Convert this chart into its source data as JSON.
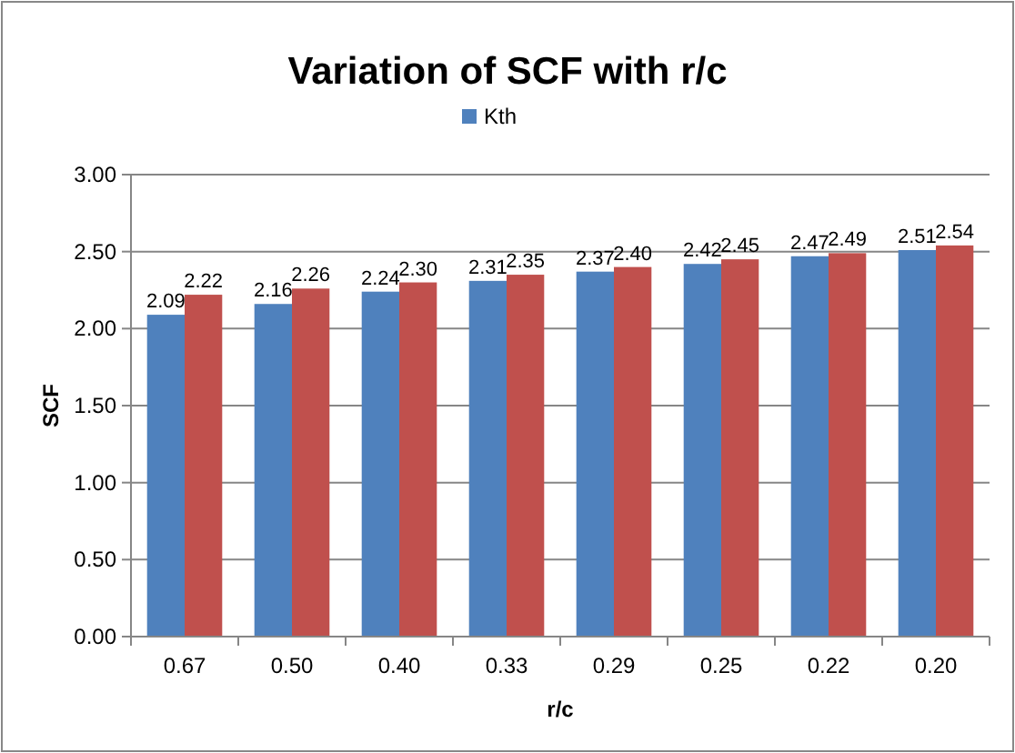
{
  "chart_data": {
    "type": "bar",
    "title": "Variation of SCF with r/c",
    "xlabel": "r/c",
    "ylabel": "SCF",
    "categories": [
      "0.67",
      "0.50",
      "0.40",
      "0.33",
      "0.29",
      "0.25",
      "0.22",
      "0.20"
    ],
    "series": [
      {
        "name": "Kth",
        "color": "#4f81bd",
        "values": [
          2.09,
          2.16,
          2.24,
          2.31,
          2.37,
          2.42,
          2.47,
          2.51
        ],
        "value_labels": [
          "2.09",
          "2.16",
          "2.24",
          "2.31",
          "2.37",
          "2.42",
          "2.47",
          "2.51"
        ]
      },
      {
        "color": "#c0504d",
        "values": [
          2.22,
          2.26,
          2.3,
          2.35,
          2.4,
          2.45,
          2.49,
          2.54
        ],
        "value_labels": [
          "2.22",
          "2.26",
          "2.30",
          "2.35",
          "2.40",
          "2.45",
          "2.49",
          "2.54"
        ]
      }
    ],
    "ylim": [
      0,
      3
    ],
    "yticks": [
      {
        "value": 0,
        "label": "0.00"
      },
      {
        "value": 0.5,
        "label": "0.50"
      },
      {
        "value": 1,
        "label": "1.00"
      },
      {
        "value": 1.5,
        "label": "1.50"
      },
      {
        "value": 2,
        "label": "2.00"
      },
      {
        "value": 2.5,
        "label": "2.50"
      },
      {
        "value": 3,
        "label": "3.00"
      }
    ],
    "grid": "y",
    "legend": "top"
  }
}
